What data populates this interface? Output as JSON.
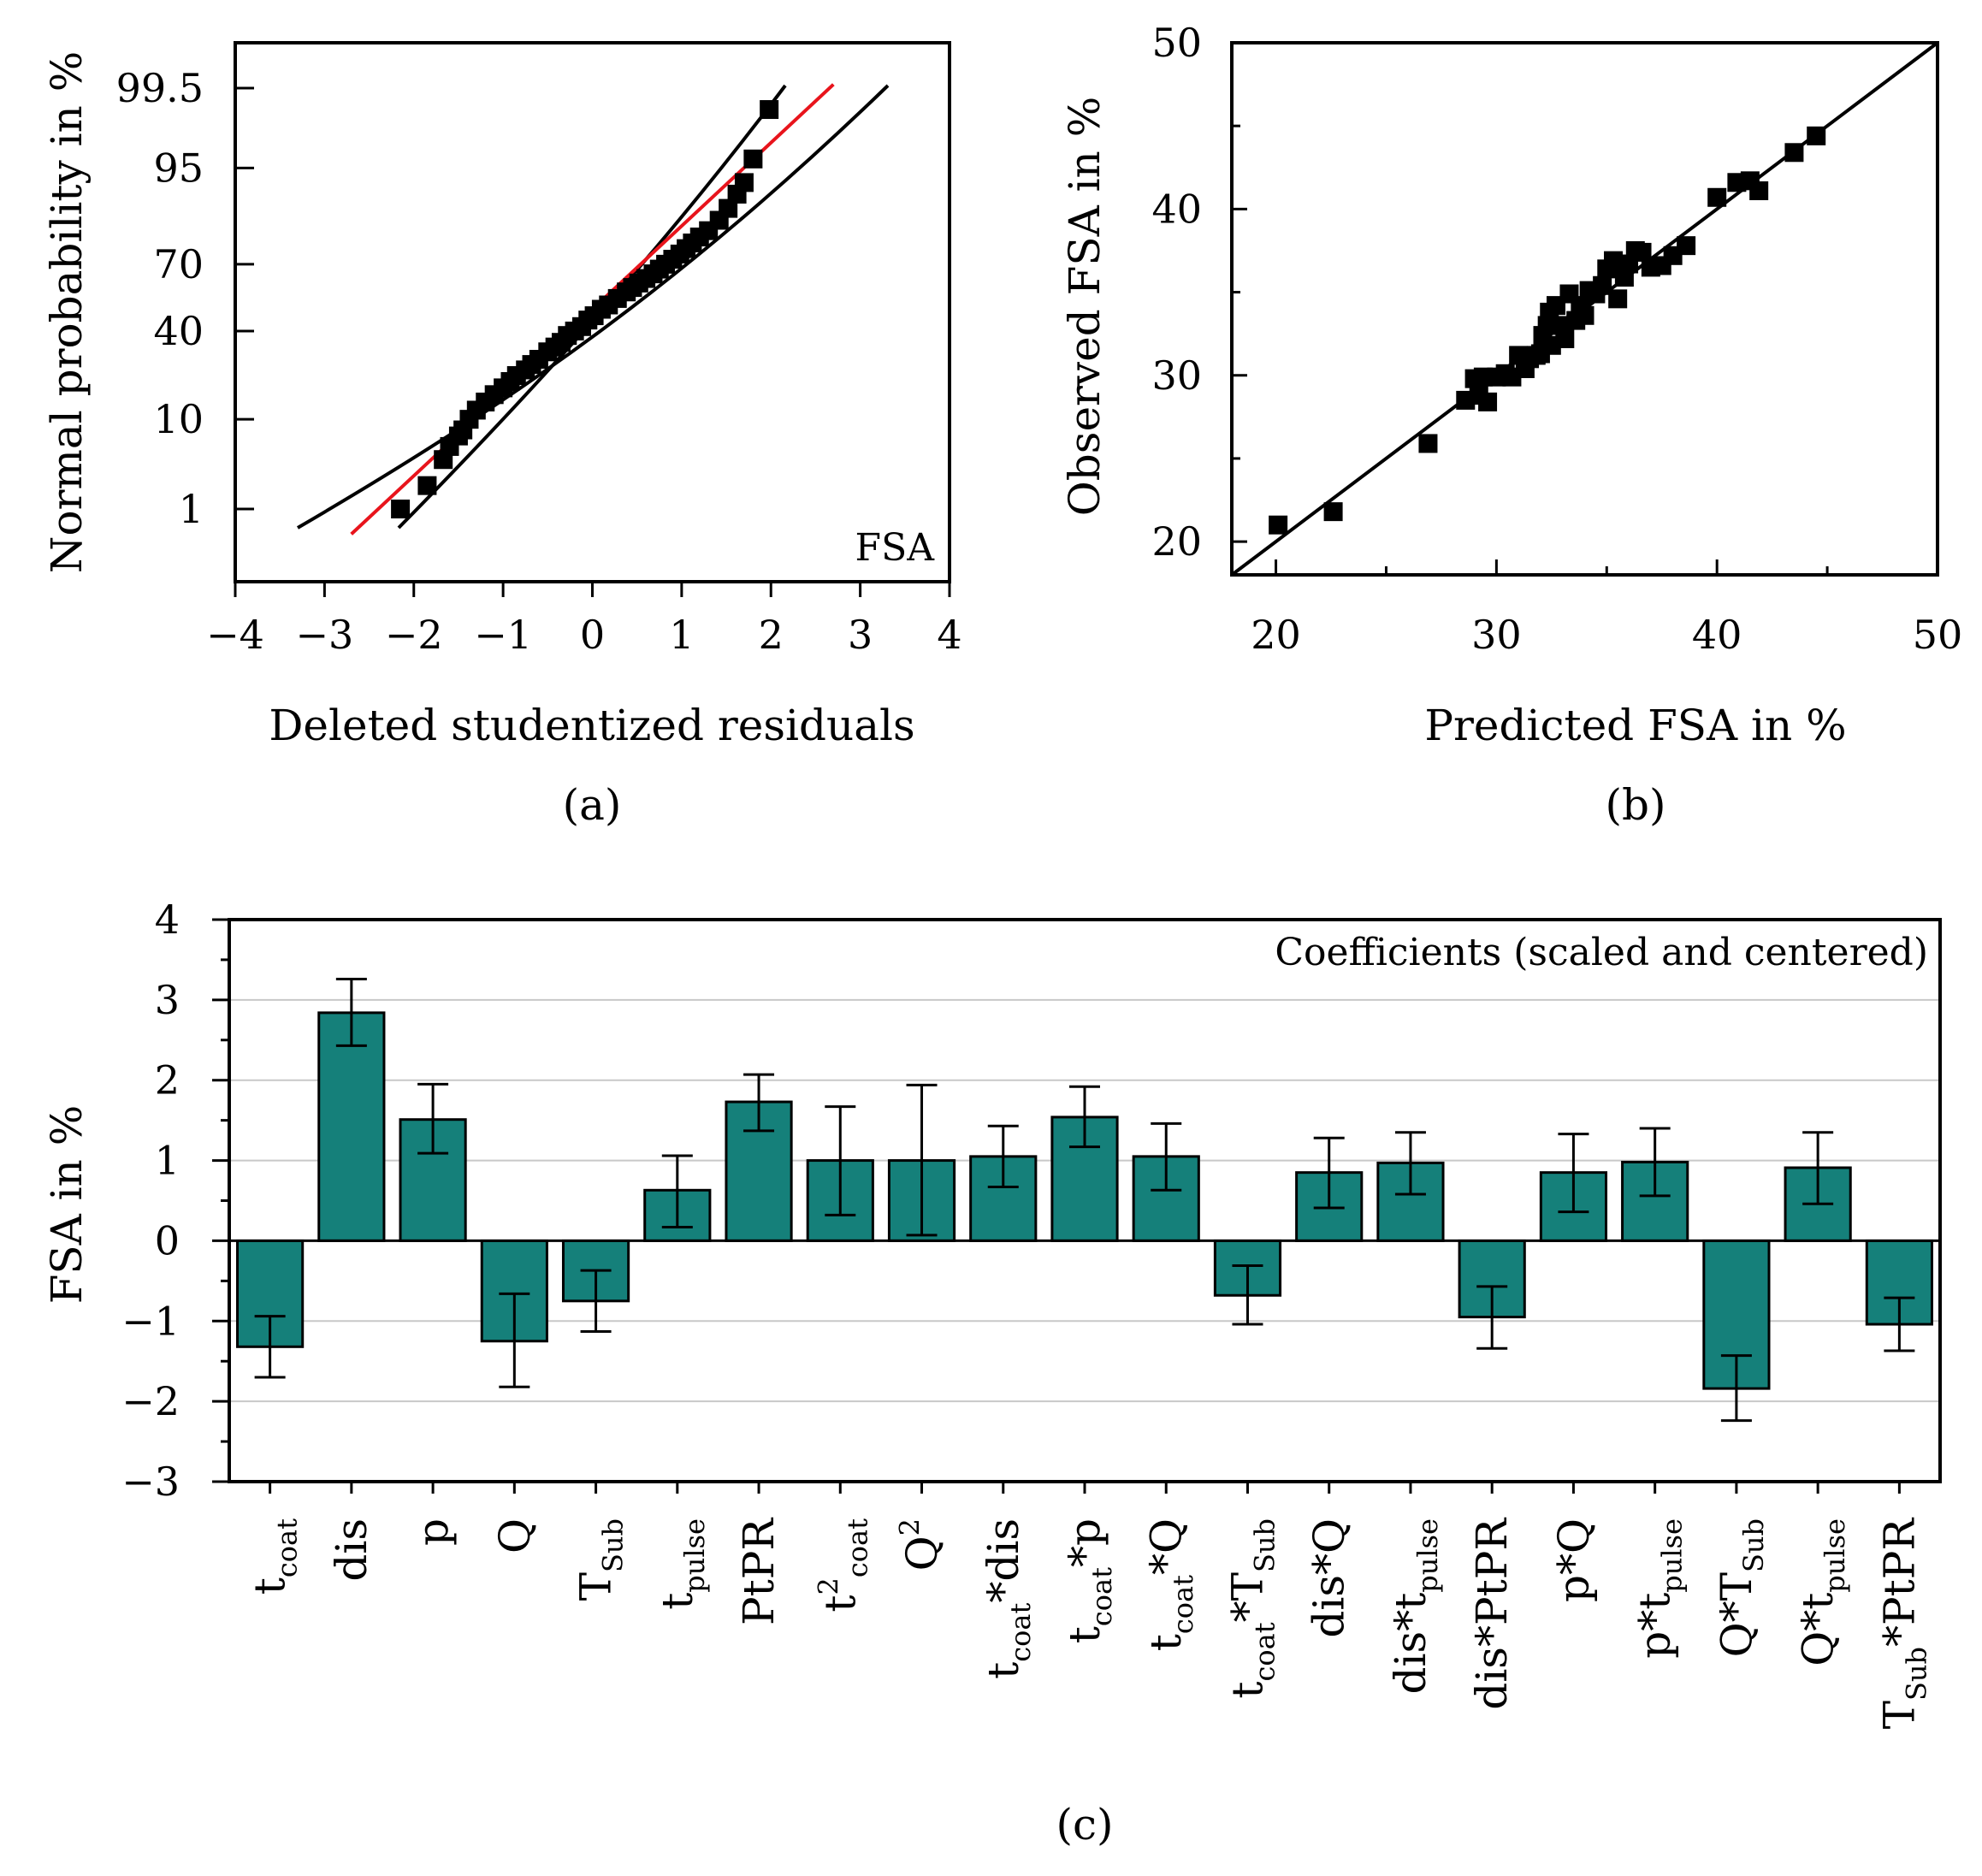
{
  "colors": {
    "bar": "#15807a",
    "fit_line": "#e8141c",
    "ink": "#000000",
    "grid": "#c8c8c8"
  },
  "chart_data": [
    {
      "type": "scatter",
      "panel": "(a)",
      "annotation": "FSA",
      "xlabel": "Deleted studentized residuals",
      "ylabel": "Normal probability in %",
      "xlim": [
        -4,
        4
      ],
      "xticks": [
        -4,
        -3,
        -2,
        -1,
        0,
        1,
        2,
        3,
        4
      ],
      "xtick_labels": [
        "−4",
        "−3",
        "−2",
        "−1",
        "0",
        "1",
        "2",
        "3",
        "4"
      ],
      "yticks": [
        1,
        10,
        40,
        70,
        95,
        99.5
      ],
      "ytick_labels": [
        "1",
        "10",
        "40",
        "70",
        "95",
        "99.5"
      ],
      "fit_line": {
        "x": [
          -2.7,
          2.7
        ]
      },
      "confidence_bounds": {
        "x_range": [
          -3.3,
          3.3
        ],
        "center": 0.15,
        "width": 0.65
      },
      "points": {
        "x": [
          -2.15,
          -1.85,
          -1.67,
          -1.6,
          -1.5,
          -1.45,
          -1.38,
          -1.3,
          -1.2,
          -1.1,
          -1.0,
          -0.92,
          -0.85,
          -0.75,
          -0.68,
          -0.6,
          -0.5,
          -0.42,
          -0.35,
          -0.28,
          -0.2,
          -0.12,
          -0.05,
          0.02,
          0.1,
          0.18,
          0.28,
          0.38,
          0.45,
          0.52,
          0.6,
          0.68,
          0.75,
          0.82,
          0.9,
          0.98,
          1.05,
          1.12,
          1.2,
          1.3,
          1.42,
          1.52,
          1.62,
          1.7,
          1.8,
          1.98
        ],
        "y": [
          1,
          2,
          4,
          5.5,
          7,
          8,
          10,
          12,
          14,
          16,
          18,
          20,
          22,
          24,
          26,
          28,
          31,
          33,
          35,
          38,
          40,
          42,
          45,
          47,
          50,
          52,
          55,
          58,
          60,
          62,
          64,
          66,
          68,
          70,
          72,
          74,
          76,
          78,
          80,
          82,
          85,
          88,
          91,
          93,
          96,
          99
        ]
      }
    },
    {
      "type": "scatter",
      "panel": "(b)",
      "xlabel": "Predicted FSA in %",
      "ylabel": "Observed FSA in %",
      "xlim": [
        18,
        50
      ],
      "ylim": [
        18,
        50
      ],
      "xticks": [
        20,
        30,
        40,
        50
      ],
      "yticks": [
        20,
        30,
        40,
        50
      ],
      "xtick_labels": [
        "20",
        "30",
        "40",
        "50"
      ],
      "ytick_labels": [
        "20",
        "30",
        "40",
        "50"
      ],
      "diagonal": [
        18,
        50
      ],
      "points": {
        "x": [
          20.1,
          22.6,
          26.9,
          28.6,
          29.0,
          29.2,
          29.4,
          29.6,
          30.0,
          30.4,
          30.7,
          31.0,
          31.3,
          31.5,
          31.8,
          32.0,
          32.1,
          32.3,
          32.4,
          32.5,
          32.7,
          33.0,
          33.1,
          33.3,
          33.6,
          33.8,
          34.0,
          34.2,
          34.5,
          34.8,
          35.0,
          35.3,
          35.5,
          35.8,
          36.0,
          36.3,
          36.6,
          37.0,
          37.5,
          38.0,
          38.6,
          40.0,
          40.9,
          41.5,
          41.9,
          43.5,
          44.5
        ],
        "y": [
          21.0,
          21.8,
          25.9,
          28.5,
          29.8,
          28.8,
          29.9,
          28.4,
          29.9,
          30.1,
          29.9,
          31.2,
          30.4,
          31.0,
          31.2,
          31.3,
          32.4,
          33.0,
          33.8,
          31.8,
          34.2,
          33.0,
          32.2,
          34.9,
          33.3,
          34.2,
          33.6,
          35.1,
          34.9,
          35.4,
          36.4,
          36.9,
          34.6,
          35.9,
          36.7,
          37.5,
          37.4,
          36.5,
          36.6,
          37.2,
          37.8,
          40.7,
          41.6,
          41.7,
          41.1,
          43.4,
          44.4
        ]
      }
    },
    {
      "type": "bar",
      "panel": "(c)",
      "annotation": "Coefficients (scaled and centered)",
      "ylabel": "FSA in %",
      "ylim": [
        -3,
        4
      ],
      "yticks": [
        -3,
        -2,
        -1,
        0,
        1,
        2,
        3,
        4
      ],
      "ytick_labels": [
        "−3",
        "−2",
        "−1",
        "0",
        "1",
        "2",
        "3",
        "4"
      ],
      "categories": [
        {
          "main": "t",
          "sub": "coat"
        },
        {
          "main": "dis"
        },
        {
          "main": "p"
        },
        {
          "main": "Q"
        },
        {
          "main": "T",
          "sub": "Sub"
        },
        {
          "main": "t",
          "sub": "pulse"
        },
        {
          "main": "PtPR"
        },
        {
          "main": "t",
          "sup": "2",
          "sub": "coat"
        },
        {
          "main": "Q",
          "sup": "2"
        },
        {
          "main": "t",
          "sub": "coat",
          "tail": "*dis"
        },
        {
          "main": "t",
          "sub": "coat",
          "tail": "*p"
        },
        {
          "main": "t",
          "sub": "coat",
          "tail": "*Q"
        },
        {
          "main": "t",
          "sub": "coat",
          "tail": "*T",
          "sub2": "Sub"
        },
        {
          "main": "dis*Q"
        },
        {
          "main": "dis*t",
          "sub": "pulse"
        },
        {
          "main": "dis*PtPR"
        },
        {
          "main": "p*Q"
        },
        {
          "main": "p*t",
          "sub": "pulse"
        },
        {
          "main": "Q*T",
          "sub": "Sub"
        },
        {
          "main": "Q*t",
          "sub": "pulse"
        },
        {
          "main": "T",
          "sub": "Sub",
          "tail": "*PtPR"
        }
      ],
      "values": [
        -1.32,
        2.84,
        1.51,
        -1.25,
        -0.75,
        0.63,
        1.73,
        1.0,
        1.0,
        1.05,
        1.54,
        1.05,
        -0.68,
        0.85,
        0.97,
        -0.95,
        0.85,
        0.98,
        -1.84,
        0.91,
        -1.04
      ],
      "error_low": [
        -1.7,
        2.43,
        1.09,
        -1.82,
        -1.13,
        0.17,
        1.37,
        0.32,
        0.07,
        0.67,
        1.17,
        0.63,
        -1.04,
        0.41,
        0.58,
        -1.34,
        0.36,
        0.56,
        -2.24,
        0.46,
        -1.37
      ],
      "error_high": [
        -0.94,
        3.26,
        1.95,
        -0.66,
        -0.37,
        1.06,
        2.07,
        1.67,
        1.94,
        1.43,
        1.92,
        1.46,
        -0.31,
        1.28,
        1.35,
        -0.57,
        1.33,
        1.4,
        -1.43,
        1.35,
        -0.71
      ]
    }
  ]
}
